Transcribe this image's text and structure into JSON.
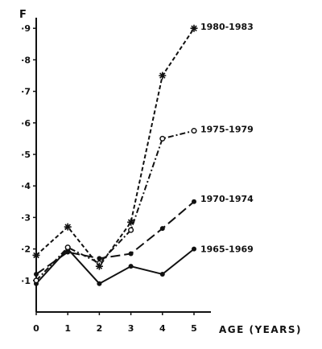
{
  "chart_data": {
    "type": "line",
    "ylabel": "F",
    "xlabel": "AGE  (YEARS)",
    "x": [
      0,
      1,
      2,
      3,
      4,
      5
    ],
    "xlim": [
      0,
      5
    ],
    "ylim": [
      0,
      0.95
    ],
    "x_ticks": [
      "0",
      "1",
      "2",
      "3",
      "4",
      "5"
    ],
    "y_ticks": [
      {
        "value": 0.1,
        "label": "·1"
      },
      {
        "value": 0.2,
        "label": "·2"
      },
      {
        "value": 0.3,
        "label": "·3"
      },
      {
        "value": 0.4,
        "label": "·4"
      },
      {
        "value": 0.5,
        "label": "·5"
      },
      {
        "value": 0.6,
        "label": "·6"
      },
      {
        "value": 0.7,
        "label": "·7"
      },
      {
        "value": 0.8,
        "label": "·8"
      },
      {
        "value": 0.9,
        "label": "·9"
      }
    ],
    "grid": false,
    "series": [
      {
        "name": "1965-1969",
        "style": "solid",
        "marker": "dot",
        "values": [
          0.09,
          0.2,
          0.09,
          0.145,
          0.12,
          0.2
        ]
      },
      {
        "name": "1970-1974",
        "style": "long-dash",
        "marker": "dot",
        "values": [
          0.12,
          0.19,
          0.17,
          0.185,
          0.265,
          0.35
        ]
      },
      {
        "name": "1975-1979",
        "style": "dash-dot",
        "marker": "circle",
        "values": [
          0.1,
          0.205,
          0.155,
          0.26,
          0.55,
          0.575
        ]
      },
      {
        "name": "1980-1983",
        "style": "short-dash",
        "marker": "star",
        "values": [
          0.18,
          0.27,
          0.145,
          0.285,
          0.75,
          0.9
        ]
      }
    ]
  }
}
